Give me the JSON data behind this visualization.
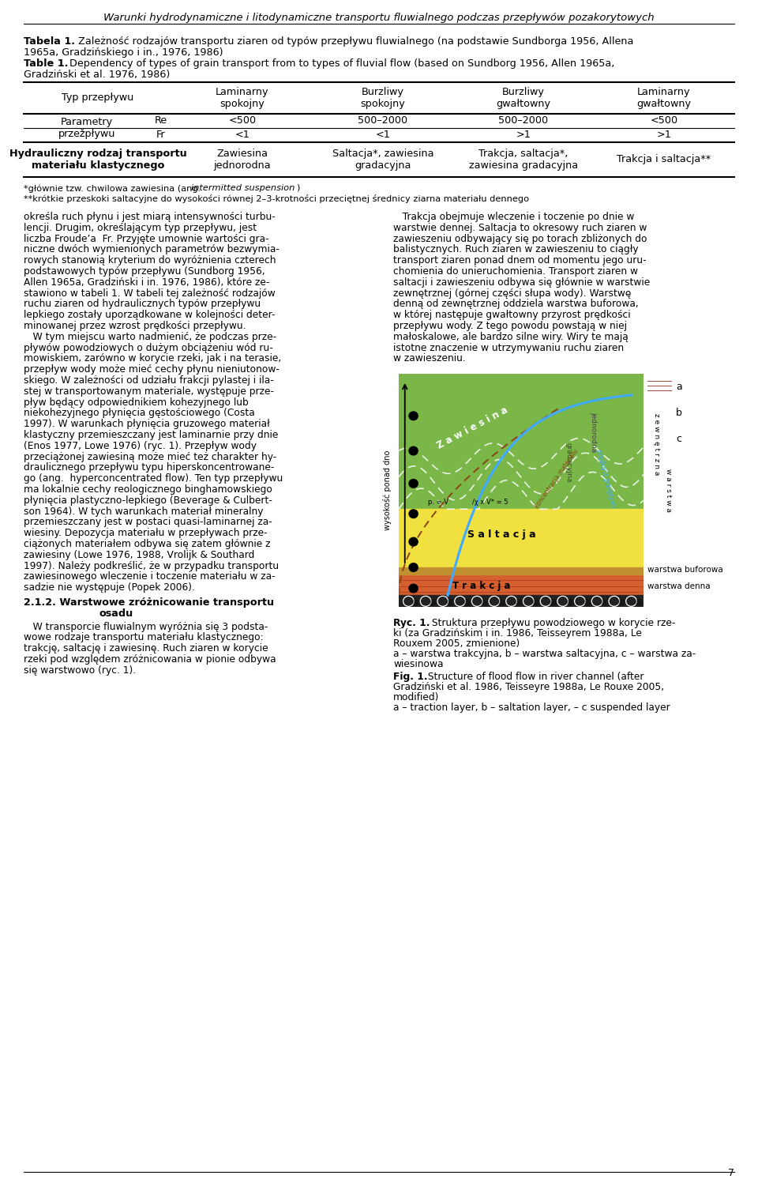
{
  "page_title": "Warunki hydrodynamiczne i litodynamiczne transportu fluwialnego podczas przepływów pozakorytowych",
  "col_headers": [
    "Laminarny\nspokojny",
    "Burzliwy\nspokojny",
    "Burzliwy\ngwałtowny",
    "Laminarny\ngwałtowny"
  ],
  "re_data": [
    "<500",
    "500–2000",
    "500–2000",
    "<500"
  ],
  "fr_data": [
    "<1",
    "<1",
    ">1",
    ">1"
  ],
  "transport_data": [
    "Zawiesina\njednorodna",
    "Saltacja*, zawiesina\ngradacyjna",
    "Trakcja, saltacja*,\nzawiesina gradacyjna",
    "Trakcja i saltacja**"
  ],
  "left_col_text": [
    "określa ruch płynu i jest miarą intensywności turbu-",
    "lencji. Drugim, określającym typ przepływu, jest",
    "liczba Froude’a  Fr. Przyjęte umownie wartości gra-",
    "niczne dwóch wymienionych parametrów bezwymia-",
    "rowych stanowią kryterium do wyróżnienia czterech",
    "podstawowych typów przepływu (Sundborg 1956,",
    "Allen 1965a, Gradziński i in. 1976, 1986), które ze-",
    "stawiono w tabeli 1. W tabeli tej zależność rodzajów",
    "ruchu ziaren od hydraulicznych typów przepływu",
    "lepkiego zostały uporządkowane w kolejności deter-",
    "minowanej przez wzrost prędkości przepływu.",
    "   W tym miejscu warto nadmienić, że podczas prze-",
    "pływów powodziowych o dużym obciążeniu wód ru-",
    "mowiskiem, zarówno w korycie rzeki, jak i na terasie,",
    "przepływ wody może mieć cechy płynu nieniutonow-",
    "skiego. W zależności od udziału frakcji pylastej i ila-",
    "stej w transportowanym materiale, występuje prze-",
    "pływ będący odpowiednikiem kohezyjnego lub",
    "niekohezyjnego płynięcia gęstościowego (Costa",
    "1997). W warunkach płynięcia gruzowego materiał",
    "klastyczny przemieszczany jest laminarnie przy dnie",
    "(Enos 1977, Lowe 1976) (ryc. 1). Przepływ wody",
    "przeciążonej zawiesiną może mieć też charakter hy-",
    "draulicznego przepływu typu hiperskoncentrowane-",
    "go (ang.  hyperconcentrated flow). Ten typ przepływu",
    "ma lokalnie cechy reologicznego binghamowskiego",
    "płynięcia plastyczno-lepkiego (Beverage & Culbert-",
    "son 1964). W tych warunkach materiał mineralny",
    "przemieszczany jest w postaci quasi-laminarnej za-",
    "wiesiny. Depozycja materiału w przepływach prze-",
    "ciążonych materiałem odbywa się zatem głównie z",
    "zawiesiny (Lowe 1976, 1988, Vrolijk & Southard",
    "1997). Należy podkreślić, że w przypadku transportu",
    "zawiesinowego wleczenie i toczenie materiału w za-",
    "sadzie nie występuje (Popek 2006)."
  ],
  "left_col_text2": [
    "   W transporcie fluwialnym wyróżnia się 3 podsta-",
    "wowe rodzaje transportu materiału klastycznego:",
    "trakcję, saltację i zawiesinę. Ruch ziaren w korycie",
    "rzeki pod względem zróżnicowania w pionie odbywa",
    "się warstwowo (ryc. 1)."
  ],
  "right_col_text": [
    "   Trakcja obejmuje wleczenie i toczenie po dnie w",
    "warstwie dennej. Saltacja to okresowy ruch ziaren w",
    "zawieszeniu odbywający się po torach zbliżonych do",
    "balistycznych. Ruch ziaren w zawieszeniu to ciągły",
    "transport ziaren ponad dnem od momentu jego uru-",
    "chomienia do unieruchomienia. Transport ziaren w",
    "saltacji i zawieszeniu odbywa się głównie w warstwie",
    "zewnętrznej (górnej części słupa wody). Warstwę",
    "denną od zewnętrznej oddziela warstwa buforowa,",
    "w której następuje gwałtowny przyrost prędkości",
    "przepływu wody. Z tego powodu powstają w niej",
    "małoskalowe, ale bardzo silne wiry. Wiry te mają",
    "istotne znaczenie w utrzymywaniu ruchu ziaren",
    "w zawieszeniu."
  ],
  "legend_a": "a",
  "legend_b": "b",
  "legend_c": "c",
  "page_num": "7",
  "green_color": "#7ab648",
  "yellow_color": "#f0e040",
  "orange_color": "#d46030",
  "bg_color": "#ffffff"
}
